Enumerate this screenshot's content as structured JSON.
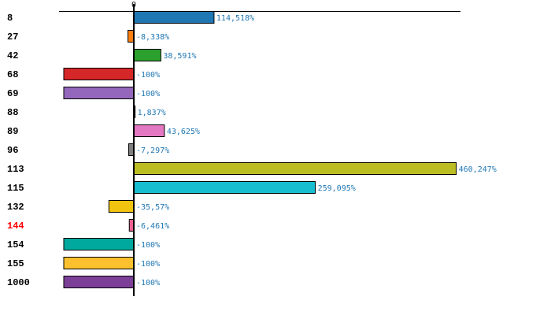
{
  "chart_data": {
    "type": "bar",
    "orientation": "horizontal",
    "zero_tick_label": "0",
    "categories": [
      "8",
      "27",
      "42",
      "68",
      "69",
      "88",
      "89",
      "96",
      "113",
      "115",
      "132",
      "144",
      "154",
      "155",
      "1000"
    ],
    "values": [
      114.518,
      -8.338,
      38.591,
      -100,
      -100,
      1.837,
      43.625,
      -7.297,
      460.247,
      259.095,
      -35.57,
      -6.461,
      -100,
      -100,
      -100
    ],
    "value_labels": [
      "114,518%",
      "-8,338%",
      "38,591%",
      "-100%",
      "-100%",
      "1,837%",
      "43,625%",
      "-7,297%",
      "460,247%",
      "259,095%",
      "-35,57%",
      "-6,461%",
      "-100%",
      "-100%",
      "-100%"
    ],
    "colors": [
      "#1f77b4",
      "#ff7f0e",
      "#2ca02c",
      "#d62728",
      "#9467bd",
      "#8c564b",
      "#e377c2",
      "#7f7f7f",
      "#bcbd22",
      "#17becf",
      "#f1c40f",
      "#f06292",
      "#00a99d",
      "#fbc02d",
      "#7b3f98"
    ],
    "highlighted_category": "144",
    "highlight_color": "#ff0000",
    "value_label_color": "#1f77b4",
    "unit": "%",
    "xlim": [
      -100,
      466
    ]
  }
}
